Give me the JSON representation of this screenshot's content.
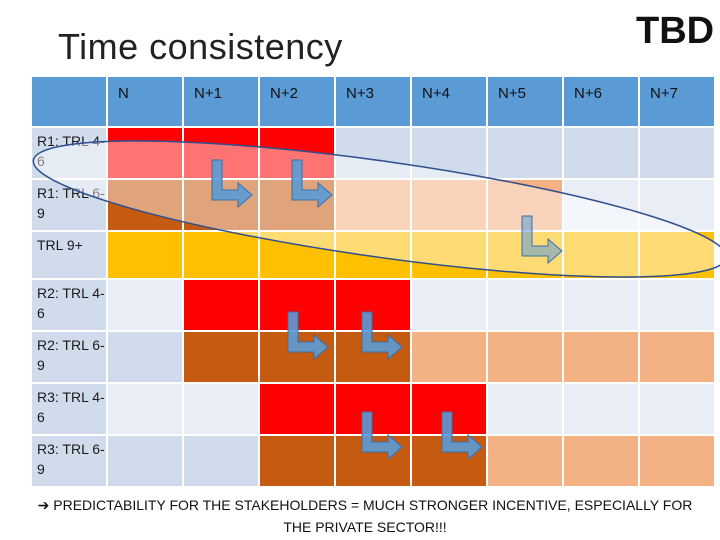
{
  "title": "Time consistency",
  "tbd": "TBD",
  "columns": [
    "",
    "N",
    "N+1",
    "N+2",
    "N+3",
    "N+4",
    "N+5",
    "N+6",
    "N+7"
  ],
  "rows": [
    {
      "label": "R1: TRL 4-6",
      "cells": [
        "red",
        "red",
        "red",
        "light",
        "light",
        "light",
        "light",
        "light"
      ]
    },
    {
      "label": "R1: TRL 6-9",
      "cells": [
        "brown",
        "brown",
        "brown",
        "peach",
        "peach",
        "peach",
        "light",
        "light"
      ]
    },
    {
      "label": "TRL 9+",
      "cells": [
        "gold",
        "gold",
        "gold",
        "gold",
        "gold",
        "gold",
        "gold",
        "gold"
      ]
    },
    {
      "label": "R2: TRL 4-6",
      "cells": [
        "light",
        "red",
        "red",
        "red",
        "light",
        "light",
        "light",
        "light"
      ]
    },
    {
      "label": "R2: TRL 6-9",
      "cells": [
        "light",
        "brown",
        "brown",
        "brown",
        "peach",
        "peach",
        "peach",
        "peach"
      ]
    },
    {
      "label": "R3: TRL 4-6",
      "cells": [
        "light",
        "light",
        "red",
        "red",
        "red",
        "light",
        "light",
        "light"
      ]
    },
    {
      "label": "R3: TRL 6-9",
      "cells": [
        "light",
        "light",
        "brown",
        "brown",
        "brown",
        "peach",
        "peach",
        "peach"
      ]
    }
  ],
  "colors": {
    "red": "#ff0000",
    "brown": "#c55a11",
    "peach": "#f4b183",
    "gold": "#ffc000",
    "light": "#d0dcec",
    "light_alt": "#e9eef6",
    "header": "#5b9bd5",
    "arrow": "#5b9bd5"
  },
  "footer": {
    "arrow_glyph": "➔",
    "text": "PREDICTABILITY FOR THE STAKEHOLDERS = MUCH STRONGER INCENTIVE, ESPECIALLY FOR THE PRIVATE SECTOR!!!"
  }
}
